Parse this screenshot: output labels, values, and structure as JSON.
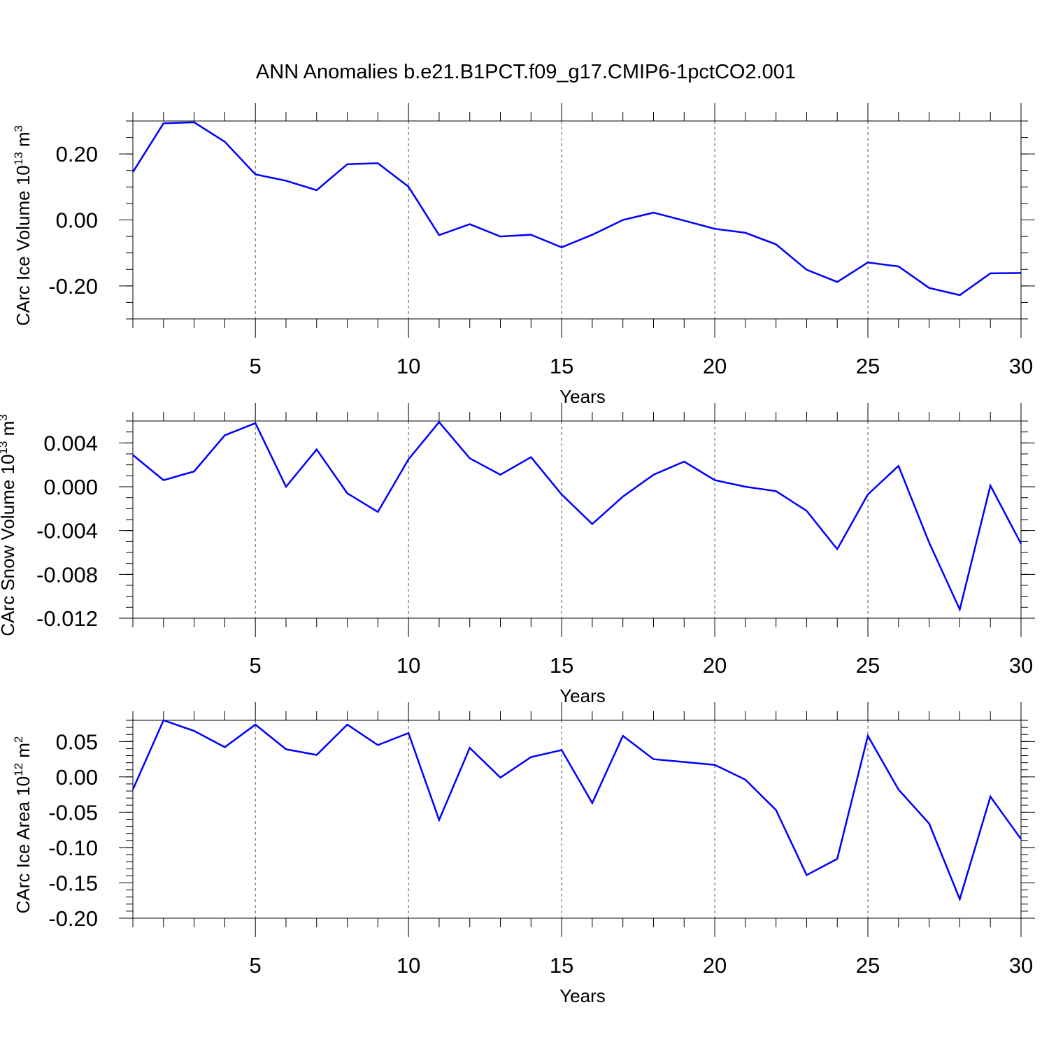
{
  "title": "ANN Anomalies b.e21.B1PCT.f09_g17.CMIP6-1pctCO2.001",
  "line_color": "#0000ff",
  "chart_data": [
    {
      "type": "line",
      "ylabel": "CArc Ice Volume 10",
      "ylabel_exp": "13",
      "ylabel_unit": " m",
      "ylabel_unit_exp": "3",
      "xlabel": "Years",
      "xlim": [
        1,
        30
      ],
      "ylim": [
        -0.3,
        0.3
      ],
      "x_ticks": [
        5,
        10,
        15,
        20,
        25,
        30
      ],
      "y_ticks": [
        0.2,
        0.0,
        -0.2
      ],
      "y_tick_labels": [
        "0.20",
        "0.00",
        "-0.20"
      ],
      "y_minor_step": 0.05,
      "grid": "dashed vertical at x major ticks",
      "x": [
        1,
        2,
        3,
        4,
        5,
        6,
        7,
        8,
        9,
        10,
        11,
        12,
        13,
        14,
        15,
        16,
        17,
        18,
        19,
        20,
        21,
        22,
        23,
        24,
        25,
        26,
        27,
        28,
        29,
        30
      ],
      "values": [
        0.145,
        0.293,
        0.296,
        0.237,
        0.138,
        0.119,
        0.09,
        0.169,
        0.172,
        0.101,
        -0.046,
        -0.013,
        -0.05,
        -0.045,
        -0.083,
        -0.045,
        0.0,
        0.022,
        -0.002,
        -0.027,
        -0.039,
        -0.074,
        -0.151,
        -0.188,
        -0.129,
        -0.141,
        -0.206,
        -0.228,
        -0.162,
        -0.161
      ]
    },
    {
      "type": "line",
      "ylabel": "CArc Snow Volume 10",
      "ylabel_exp": "13",
      "ylabel_unit": " m",
      "ylabel_unit_exp": "3",
      "xlabel": "Years",
      "xlim": [
        1,
        30
      ],
      "ylim": [
        -0.012,
        0.006
      ],
      "x_ticks": [
        5,
        10,
        15,
        20,
        25,
        30
      ],
      "y_ticks": [
        0.004,
        0.0,
        -0.004,
        -0.008,
        -0.012
      ],
      "y_tick_labels": [
        "0.004",
        "0.000",
        "-0.004",
        "-0.008",
        "-0.012"
      ],
      "y_minor_step": 0.001,
      "grid": "dashed vertical at x major ticks",
      "x": [
        1,
        2,
        3,
        4,
        5,
        6,
        7,
        8,
        9,
        10,
        11,
        12,
        13,
        14,
        15,
        16,
        17,
        18,
        19,
        20,
        21,
        22,
        23,
        24,
        25,
        26,
        27,
        28,
        29,
        30
      ],
      "values": [
        0.0029,
        0.0006,
        0.0014,
        0.0047,
        0.0058,
        0.0,
        0.0034,
        -0.0006,
        -0.0023,
        0.0025,
        0.0059,
        0.0026,
        0.0011,
        0.0027,
        -0.0007,
        -0.0034,
        -0.0009,
        0.0011,
        0.0023,
        0.0006,
        0.0,
        -0.0004,
        -0.0022,
        -0.0057,
        -0.0007,
        0.0019,
        -0.0051,
        -0.0112,
        0.0001,
        -0.0052
      ]
    },
    {
      "type": "line",
      "ylabel": "CArc Ice Area 10",
      "ylabel_exp": "12",
      "ylabel_unit": " m",
      "ylabel_unit_exp": "2",
      "xlabel": "Years",
      "xlim": [
        1,
        30
      ],
      "ylim": [
        -0.2,
        0.08
      ],
      "x_ticks": [
        5,
        10,
        15,
        20,
        25,
        30
      ],
      "y_ticks": [
        0.05,
        0.0,
        -0.05,
        -0.1,
        -0.15,
        -0.2
      ],
      "y_tick_labels": [
        "0.05",
        "0.00",
        "-0.05",
        "-0.10",
        "-0.15",
        "-0.20"
      ],
      "y_minor_step": 0.01,
      "grid": "dashed vertical at x major ticks",
      "x": [
        1,
        2,
        3,
        4,
        5,
        6,
        7,
        8,
        9,
        10,
        11,
        12,
        13,
        14,
        15,
        16,
        17,
        18,
        19,
        20,
        21,
        22,
        23,
        24,
        25,
        26,
        27,
        28,
        29,
        30
      ],
      "values": [
        -0.018,
        0.08,
        0.065,
        0.042,
        0.074,
        0.039,
        0.031,
        0.074,
        0.045,
        0.062,
        -0.061,
        0.041,
        -0.001,
        0.028,
        0.038,
        -0.037,
        0.058,
        0.025,
        0.021,
        0.017,
        -0.004,
        -0.047,
        -0.139,
        -0.116,
        0.058,
        -0.018,
        -0.066,
        -0.173,
        -0.028,
        -0.088
      ]
    }
  ]
}
